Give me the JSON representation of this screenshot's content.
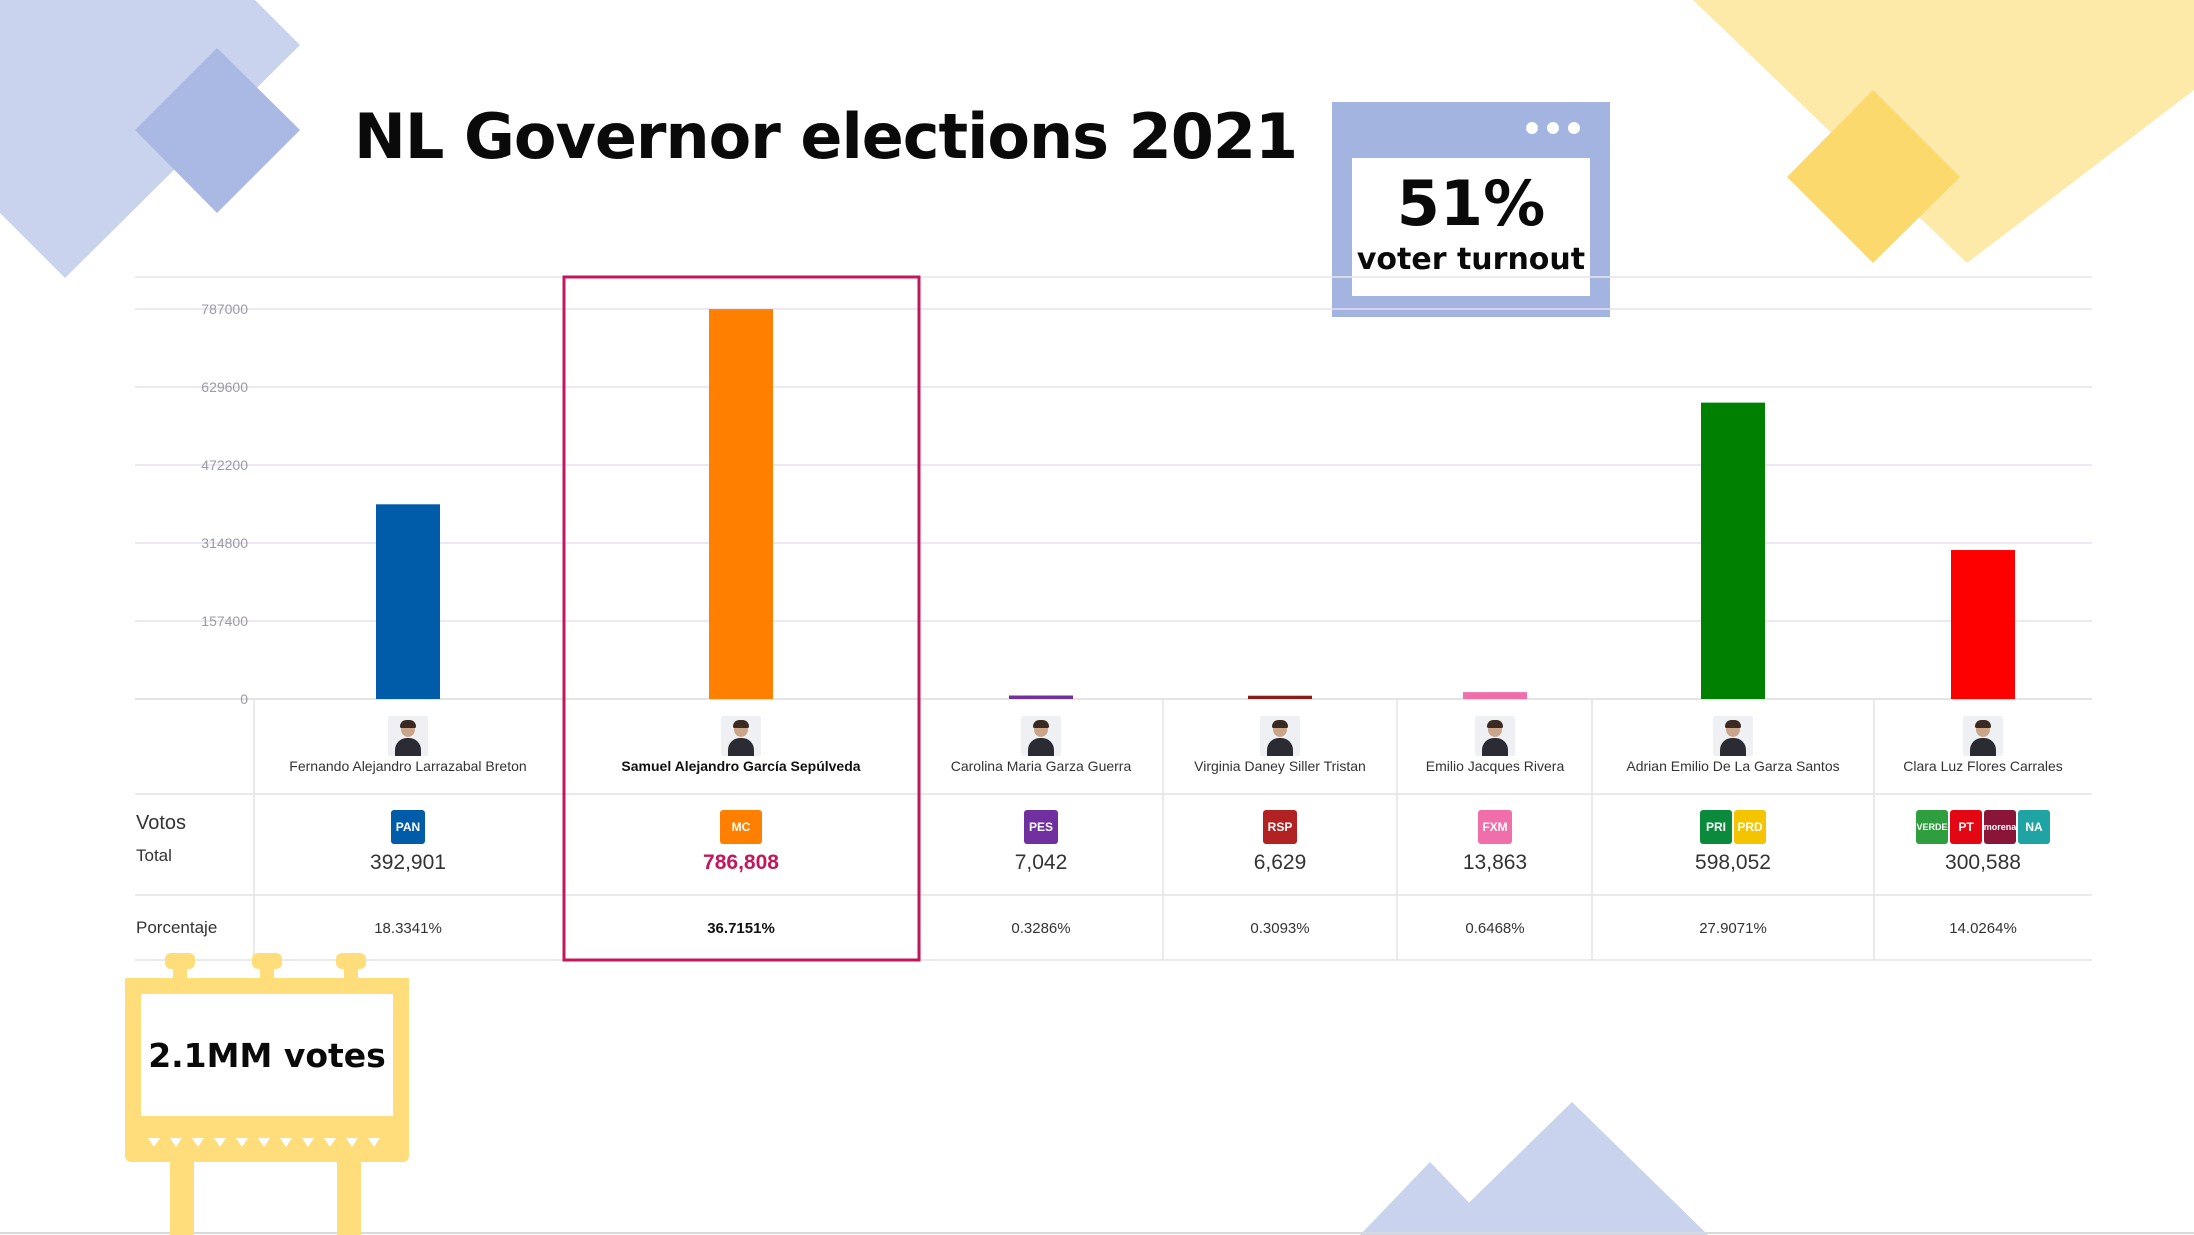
{
  "title": "NL Governor elections 2021",
  "turnout": {
    "value": "51%",
    "label": "voter turnout"
  },
  "sign": {
    "label": "2.1MM votes"
  },
  "table": {
    "votes_label": "Votos",
    "total_label": "Total",
    "pct_label": "Porcentaje"
  },
  "colors": {
    "highlight": "#c2185b",
    "grid": "#e8dff0"
  },
  "chart_data": {
    "type": "bar",
    "categories": [
      "Fernando Alejandro Larrazabal Breton",
      "Samuel Alejandro García Sepúlveda",
      "Carolina Maria Garza Guerra",
      "Virginia Daney Siller Tristan",
      "Emilio Jacques Rivera",
      "Adrian Emilio De La Garza Santos",
      "Clara Luz Flores Carrales"
    ],
    "values": [
      392901,
      786808,
      7042,
      6629,
      13863,
      598052,
      300588
    ],
    "vote_labels": [
      "392,901",
      "786,808",
      "7,042",
      "6,629",
      "13,863",
      "598,052",
      "300,588"
    ],
    "percentages": [
      "18.3341%",
      "36.7151%",
      "0.3286%",
      "0.3093%",
      "0.6468%",
      "27.9071%",
      "14.0264%"
    ],
    "colors": [
      "#005ca9",
      "#ff8000",
      "#7030a0",
      "#8b1a1a",
      "#f06eaa",
      "#008000",
      "#ff0000"
    ],
    "party_logos": [
      "PAN",
      "MC",
      "PES",
      "RSP",
      "FXM",
      "PRI-PRD",
      "VERDE-PT-morena-NA"
    ],
    "ylim": [
      0,
      787000
    ],
    "yticks": [
      "0",
      "157400",
      "314800",
      "472200",
      "629600",
      "787000"
    ],
    "highlight_index": 1,
    "grid": true
  }
}
